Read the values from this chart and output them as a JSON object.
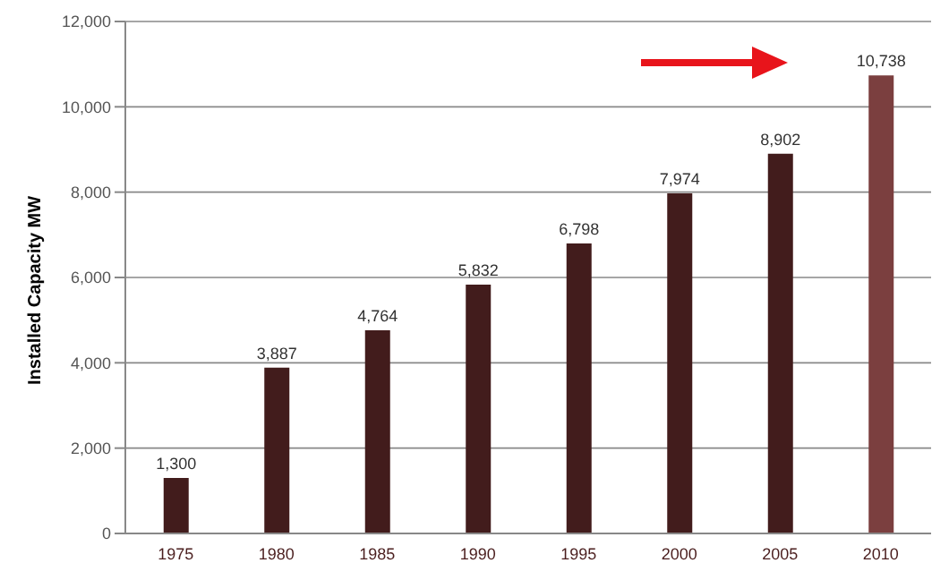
{
  "chart_data": {
    "type": "bar",
    "ylabel": "Installed Capacity MW",
    "categories": [
      "1975",
      "1980",
      "1985",
      "1990",
      "1995",
      "2000",
      "2005",
      "2010"
    ],
    "values": [
      1300,
      3887,
      4764,
      5832,
      6798,
      7974,
      8902,
      10738
    ],
    "colors": [
      "#421c1c",
      "#421c1c",
      "#421c1c",
      "#421c1c",
      "#421c1c",
      "#421c1c",
      "#421c1c",
      "#7b3f3f"
    ],
    "ylim": [
      0,
      12000
    ],
    "yticks": [
      {
        "value": 0,
        "label": "0"
      },
      {
        "value": 2000,
        "label": "2,000"
      },
      {
        "value": 4000,
        "label": "4,000"
      },
      {
        "value": 6000,
        "label": "6,000"
      },
      {
        "value": 8000,
        "label": "8,000"
      },
      {
        "value": 10000,
        "label": "10,000"
      },
      {
        "value": 12000,
        "label": "12,000"
      }
    ],
    "value_labels": [
      "1,300",
      "3,887",
      "4,764",
      "5,832",
      "6,798",
      "7,974",
      "8,902",
      "10,738"
    ],
    "grid": "y"
  }
}
